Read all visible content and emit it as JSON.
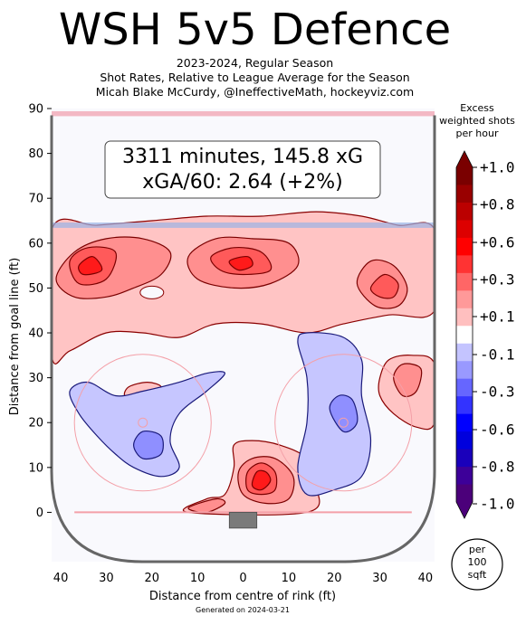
{
  "title": "WSH 5v5 Defence",
  "subtitle_lines": [
    "2023-2024, Regular Season",
    "Shot Rates, Relative to League Average for the Season",
    "Micah Blake McCurdy, @IneffectiveMath, hockeyviz.com"
  ],
  "summary_box": {
    "line1": "3311 minutes, 145.8 xG",
    "line2": "xGA/60: 2.64 (+2%)"
  },
  "footer": "Generated on 2024-03-21",
  "colorbar": {
    "title_lines": [
      "Excess",
      "weighted shots",
      "per hour"
    ],
    "tick_labels": [
      "+1.0",
      "+0.8",
      "+0.6",
      "+0.3",
      "+0.1",
      "-0.1",
      "-0.3",
      "-0.6",
      "-0.8",
      "-1.0"
    ],
    "colors": [
      "#7a0000",
      "#990000",
      "#bb0000",
      "#dd0000",
      "#ff0000",
      "#ff3333",
      "#ff6666",
      "#ff9999",
      "#ffbfbf",
      "#ffffff",
      "#c4c4ff",
      "#9999ff",
      "#6666ff",
      "#3333ff",
      "#0000ff",
      "#0000dd",
      "#1a00bb",
      "#3d0099",
      "#4b007a"
    ],
    "unit_lines": [
      "per",
      "100",
      "sqft"
    ]
  },
  "chart_data": {
    "type": "heatmap",
    "xlabel": "Distance from centre of rink (ft)",
    "ylabel": "Distance from goal line (ft)",
    "xlim": [
      -42,
      42
    ],
    "ylim": [
      -11,
      90
    ],
    "x_ticks": [
      40,
      30,
      20,
      10,
      0,
      10,
      20,
      30,
      40
    ],
    "x_tick_values": [
      -40,
      -30,
      -20,
      -10,
      0,
      10,
      20,
      30,
      40
    ],
    "y_ticks": [
      0,
      10,
      20,
      30,
      40,
      50,
      60,
      70,
      80,
      90
    ],
    "blue_line_ft": 64,
    "faceoff_circles": [
      {
        "x": -22,
        "y": 20,
        "r": 15
      },
      {
        "x": 22,
        "y": 20,
        "r": 15
      }
    ],
    "regions": [
      {
        "level": 1,
        "points": [
          [
            -42,
            35
          ],
          [
            -38,
            36
          ],
          [
            -30,
            40
          ],
          [
            -22,
            40
          ],
          [
            -14,
            39
          ],
          [
            -6,
            42
          ],
          [
            4,
            42
          ],
          [
            14,
            40
          ],
          [
            22,
            42
          ],
          [
            32,
            44
          ],
          [
            42,
            45
          ],
          [
            42,
            63
          ],
          [
            34,
            64
          ],
          [
            26,
            66
          ],
          [
            16,
            67
          ],
          [
            4,
            66
          ],
          [
            -8,
            66
          ],
          [
            -20,
            65
          ],
          [
            -32,
            64
          ],
          [
            -42,
            63
          ]
        ]
      },
      {
        "level": 2,
        "points": [
          [
            -41,
            52
          ],
          [
            -37,
            58
          ],
          [
            -30,
            61
          ],
          [
            -22,
            61
          ],
          [
            -16,
            58
          ],
          [
            -18,
            53
          ],
          [
            -24,
            50
          ],
          [
            -30,
            48
          ],
          [
            -37,
            48
          ]
        ]
      },
      {
        "level": 3,
        "points": [
          [
            -38,
            56
          ],
          [
            -34,
            59
          ],
          [
            -28,
            58
          ],
          [
            -30,
            52
          ],
          [
            -36,
            51
          ]
        ]
      },
      {
        "level": 4,
        "points": [
          [
            -36,
            55
          ],
          [
            -33,
            57
          ],
          [
            -31,
            54
          ],
          [
            -35,
            53
          ]
        ]
      },
      {
        "level": 2,
        "points": [
          [
            -12,
            57
          ],
          [
            -6,
            61
          ],
          [
            2,
            61
          ],
          [
            10,
            60
          ],
          [
            12,
            55
          ],
          [
            6,
            51
          ],
          [
            -2,
            50
          ],
          [
            -10,
            52
          ]
        ]
      },
      {
        "level": 3,
        "points": [
          [
            -7,
            57
          ],
          [
            -2,
            59
          ],
          [
            4,
            58
          ],
          [
            6,
            54
          ],
          [
            0,
            53
          ],
          [
            -5,
            54
          ]
        ]
      },
      {
        "level": 4,
        "points": [
          [
            -3,
            56
          ],
          [
            1,
            57
          ],
          [
            2,
            55
          ],
          [
            -1,
            54
          ]
        ]
      },
      {
        "level": 2,
        "points": [
          [
            25,
            51
          ],
          [
            28,
            56
          ],
          [
            33,
            55
          ],
          [
            36,
            50
          ],
          [
            34,
            46
          ],
          [
            29,
            46
          ]
        ]
      },
      {
        "level": 3,
        "points": [
          [
            28,
            50
          ],
          [
            31,
            53
          ],
          [
            34,
            51
          ],
          [
            33,
            48
          ],
          [
            30,
            48
          ]
        ]
      },
      {
        "level": 1,
        "points": [
          [
            -26,
            26
          ],
          [
            -25,
            28
          ],
          [
            -21,
            29
          ],
          [
            -18,
            28
          ],
          [
            -20,
            26
          ],
          [
            -24,
            25
          ]
        ]
      },
      {
        "level": 1,
        "points": [
          [
            30,
            30
          ],
          [
            32,
            34
          ],
          [
            37,
            35
          ],
          [
            42,
            33
          ],
          [
            42,
            20
          ],
          [
            38,
            19
          ],
          [
            33,
            22
          ],
          [
            30,
            26
          ]
        ]
      },
      {
        "level": 2,
        "points": [
          [
            33,
            30
          ],
          [
            35,
            33
          ],
          [
            39,
            32
          ],
          [
            38,
            27
          ],
          [
            35,
            26
          ]
        ]
      },
      {
        "level": 1,
        "points": [
          [
            -12,
            0
          ],
          [
            -8,
            3
          ],
          [
            -4,
            4
          ],
          [
            -2,
            10
          ],
          [
            -2,
            15
          ],
          [
            2,
            16
          ],
          [
            8,
            15
          ],
          [
            14,
            12
          ],
          [
            16,
            6
          ],
          [
            14,
            0
          ]
        ]
      },
      {
        "level": 2,
        "points": [
          [
            -12,
            1
          ],
          [
            -6,
            3
          ],
          [
            -4,
            2
          ],
          [
            -8,
            0
          ]
        ]
      },
      {
        "level": 2,
        "points": [
          [
            0,
            4
          ],
          [
            -1,
            9
          ],
          [
            2,
            12
          ],
          [
            7,
            12
          ],
          [
            11,
            8
          ],
          [
            10,
            3
          ],
          [
            5,
            2
          ]
        ]
      },
      {
        "level": 3,
        "points": [
          [
            1,
            5
          ],
          [
            1,
            9
          ],
          [
            4,
            11
          ],
          [
            7,
            9
          ],
          [
            7,
            5
          ],
          [
            4,
            4
          ]
        ]
      },
      {
        "level": 4,
        "points": [
          [
            2,
            6
          ],
          [
            3,
            9
          ],
          [
            5,
            9
          ],
          [
            6,
            7
          ],
          [
            4,
            5
          ]
        ]
      },
      {
        "level": -1,
        "points": [
          [
            -38,
            27
          ],
          [
            -34,
            29
          ],
          [
            -28,
            26
          ],
          [
            -22,
            27
          ],
          [
            -14,
            29
          ],
          [
            -8,
            31
          ],
          [
            -4,
            31
          ],
          [
            -8,
            27
          ],
          [
            -14,
            22
          ],
          [
            -16,
            16
          ],
          [
            -14,
            10
          ],
          [
            -18,
            8
          ],
          [
            -24,
            10
          ],
          [
            -28,
            13
          ],
          [
            -32,
            17
          ],
          [
            -36,
            22
          ]
        ]
      },
      {
        "level": -2,
        "points": [
          [
            -24,
            15
          ],
          [
            -22,
            18
          ],
          [
            -18,
            17
          ],
          [
            -18,
            13
          ],
          [
            -22,
            12
          ]
        ]
      },
      {
        "level": -1,
        "points": [
          [
            12,
            38
          ],
          [
            14,
            40
          ],
          [
            22,
            39
          ],
          [
            26,
            34
          ],
          [
            26,
            26
          ],
          [
            28,
            16
          ],
          [
            26,
            8
          ],
          [
            20,
            5
          ],
          [
            14,
            4
          ],
          [
            12,
            10
          ],
          [
            14,
            20
          ],
          [
            14,
            30
          ]
        ]
      },
      {
        "level": -2,
        "points": [
          [
            19,
            23
          ],
          [
            21,
            26
          ],
          [
            24,
            25
          ],
          [
            25,
            20
          ],
          [
            22,
            18
          ]
        ]
      }
    ]
  }
}
